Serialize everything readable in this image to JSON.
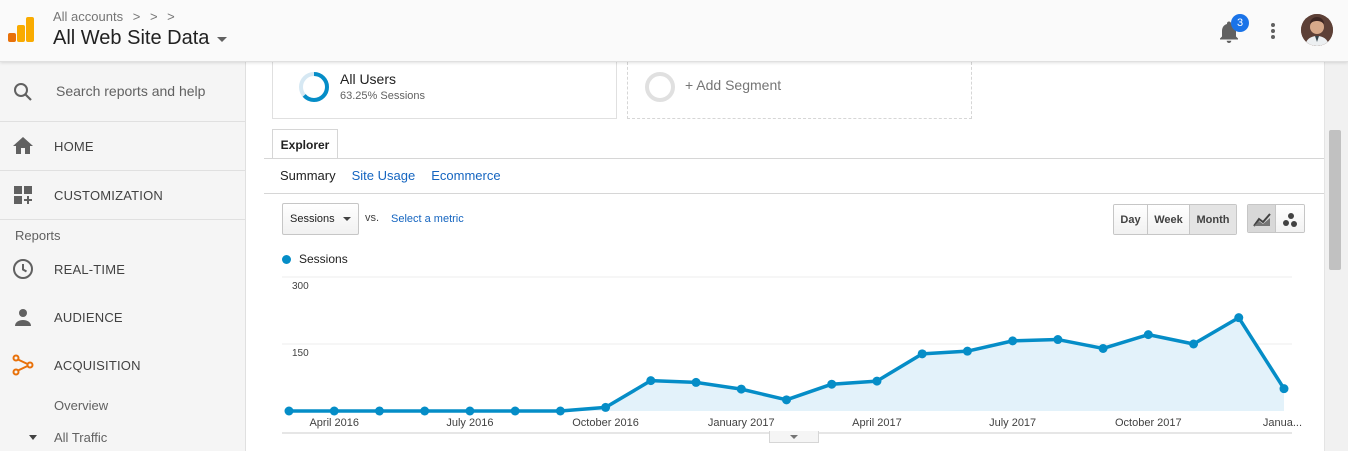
{
  "header": {
    "breadcrumb": "All accounts",
    "breadcrumb_sep1": ">",
    "breadcrumb_sep2": ">",
    "breadcrumb_sep3": ">",
    "view_title": "All Web Site Data",
    "notification_count": "3"
  },
  "sidebar": {
    "search_placeholder": "Search reports and help",
    "home": "HOME",
    "customization": "CUSTOMIZATION",
    "reports_label": "Reports",
    "realtime": "REAL-TIME",
    "audience": "AUDIENCE",
    "acquisition": "ACQUISITION",
    "overview": "Overview",
    "all_traffic": "All Traffic"
  },
  "segments": {
    "all_users_name": "All Users",
    "all_users_sub": "63.25% Sessions",
    "all_users_share": 0.6325,
    "add_segment": "+ Add Segment"
  },
  "tabs": {
    "explorer": "Explorer",
    "summary": "Summary",
    "site_usage": "Site Usage",
    "ecommerce": "Ecommerce"
  },
  "controls": {
    "metric": "Sessions",
    "vs": "vs.",
    "select_metric": "Select a metric",
    "day": "Day",
    "week": "Week",
    "month": "Month"
  },
  "colors": {
    "accent": "#058dc7",
    "area_fill": "#e3f2fa",
    "link": "#1565c0",
    "acquisition_icon": "#e8710a"
  },
  "chart_data": {
    "type": "area",
    "legend": "Sessions",
    "y_ticks": [
      "300",
      "150"
    ],
    "ylim": [
      0,
      300
    ],
    "x_labels": [
      "April 2016",
      "July 2016",
      "October 2016",
      "January 2017",
      "April 2017",
      "July 2017",
      "October 2017",
      "Janua..."
    ],
    "series": [
      {
        "name": "Sessions",
        "values": [
          0,
          0,
          0,
          0,
          0,
          0,
          0,
          8,
          68,
          64,
          49,
          25,
          60,
          67,
          128,
          134,
          157,
          160,
          140,
          171,
          150,
          209,
          50
        ]
      }
    ]
  }
}
